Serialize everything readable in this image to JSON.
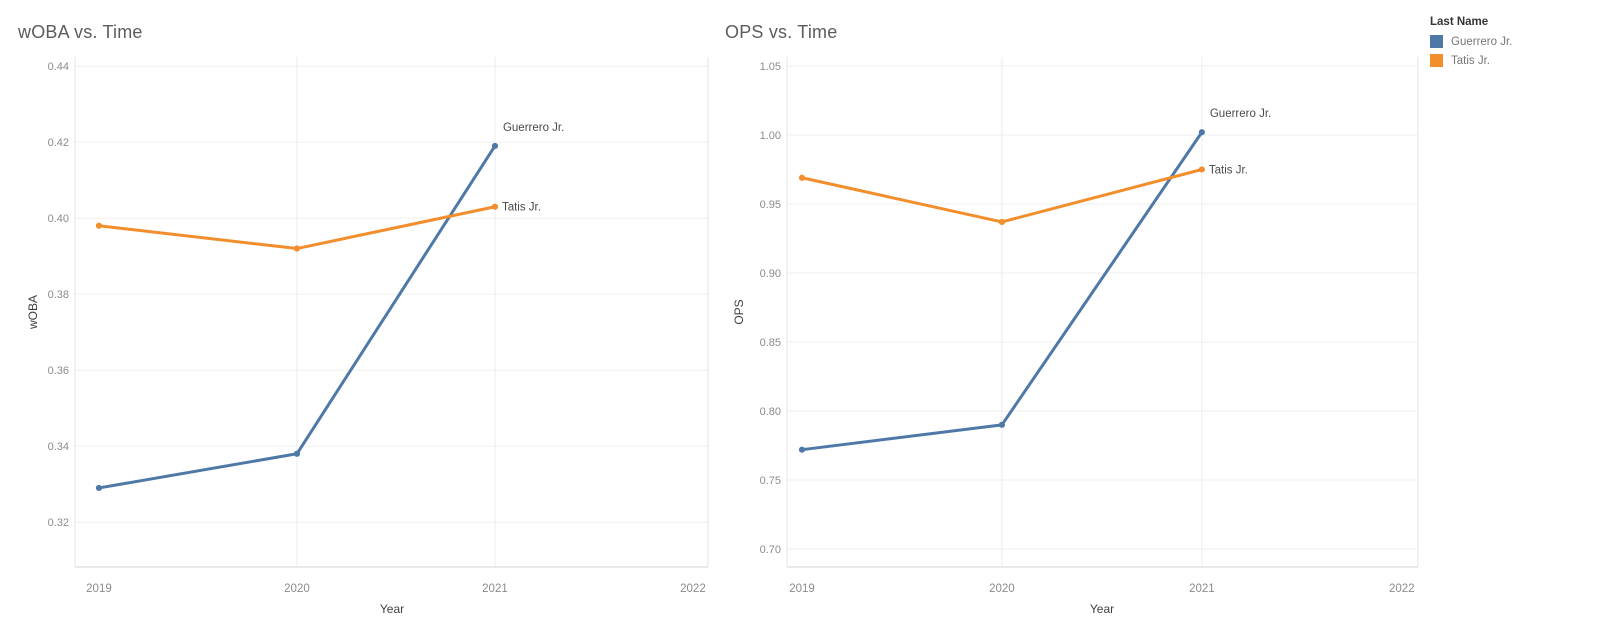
{
  "legend": {
    "title": "Last Name",
    "items": [
      {
        "label": "Guerrero Jr.",
        "color": "#4E79A7"
      },
      {
        "label": "Tatis Jr.",
        "color": "#F28E2B"
      }
    ]
  },
  "chart_data": [
    {
      "type": "line",
      "title": "wOBA vs. Time",
      "xlabel": "Year",
      "ylabel": "wOBA",
      "x": [
        2019,
        2020,
        2021
      ],
      "xticks": [
        "2019",
        "2020",
        "2021",
        "2022"
      ],
      "yticks": [
        "0.44",
        "0.42",
        "0.40",
        "0.38",
        "0.36",
        "0.34",
        "0.32"
      ],
      "xlim": [
        2018.879,
        2022.076
      ],
      "ylim": [
        0.3082,
        0.4424
      ],
      "grid": true,
      "legend_position": "top-right-of-page",
      "series": [
        {
          "name": "Guerrero Jr.",
          "color": "#4E79A7",
          "values": [
            0.329,
            0.338,
            0.419
          ]
        },
        {
          "name": "Tatis Jr.",
          "color": "#F28E2B",
          "values": [
            0.398,
            0.392,
            0.403
          ]
        }
      ]
    },
    {
      "type": "line",
      "title": "OPS vs. Time",
      "xlabel": "Year",
      "ylabel": "OPS",
      "x": [
        2019,
        2020,
        2021
      ],
      "xticks": [
        "2019",
        "2020",
        "2021",
        "2022"
      ],
      "yticks": [
        "1.05",
        "1.00",
        "0.95",
        "0.90",
        "0.85",
        "0.80",
        "0.75",
        "0.70"
      ],
      "xlim": [
        2018.925,
        2022.081
      ],
      "ylim": [
        0.687,
        1.0565
      ],
      "grid": true,
      "legend_position": "top-right-of-page",
      "series": [
        {
          "name": "Guerrero Jr.",
          "color": "#4E79A7",
          "values": [
            0.772,
            0.79,
            1.002
          ]
        },
        {
          "name": "Tatis Jr.",
          "color": "#F28E2B",
          "values": [
            0.969,
            0.937,
            0.975
          ]
        }
      ]
    }
  ]
}
